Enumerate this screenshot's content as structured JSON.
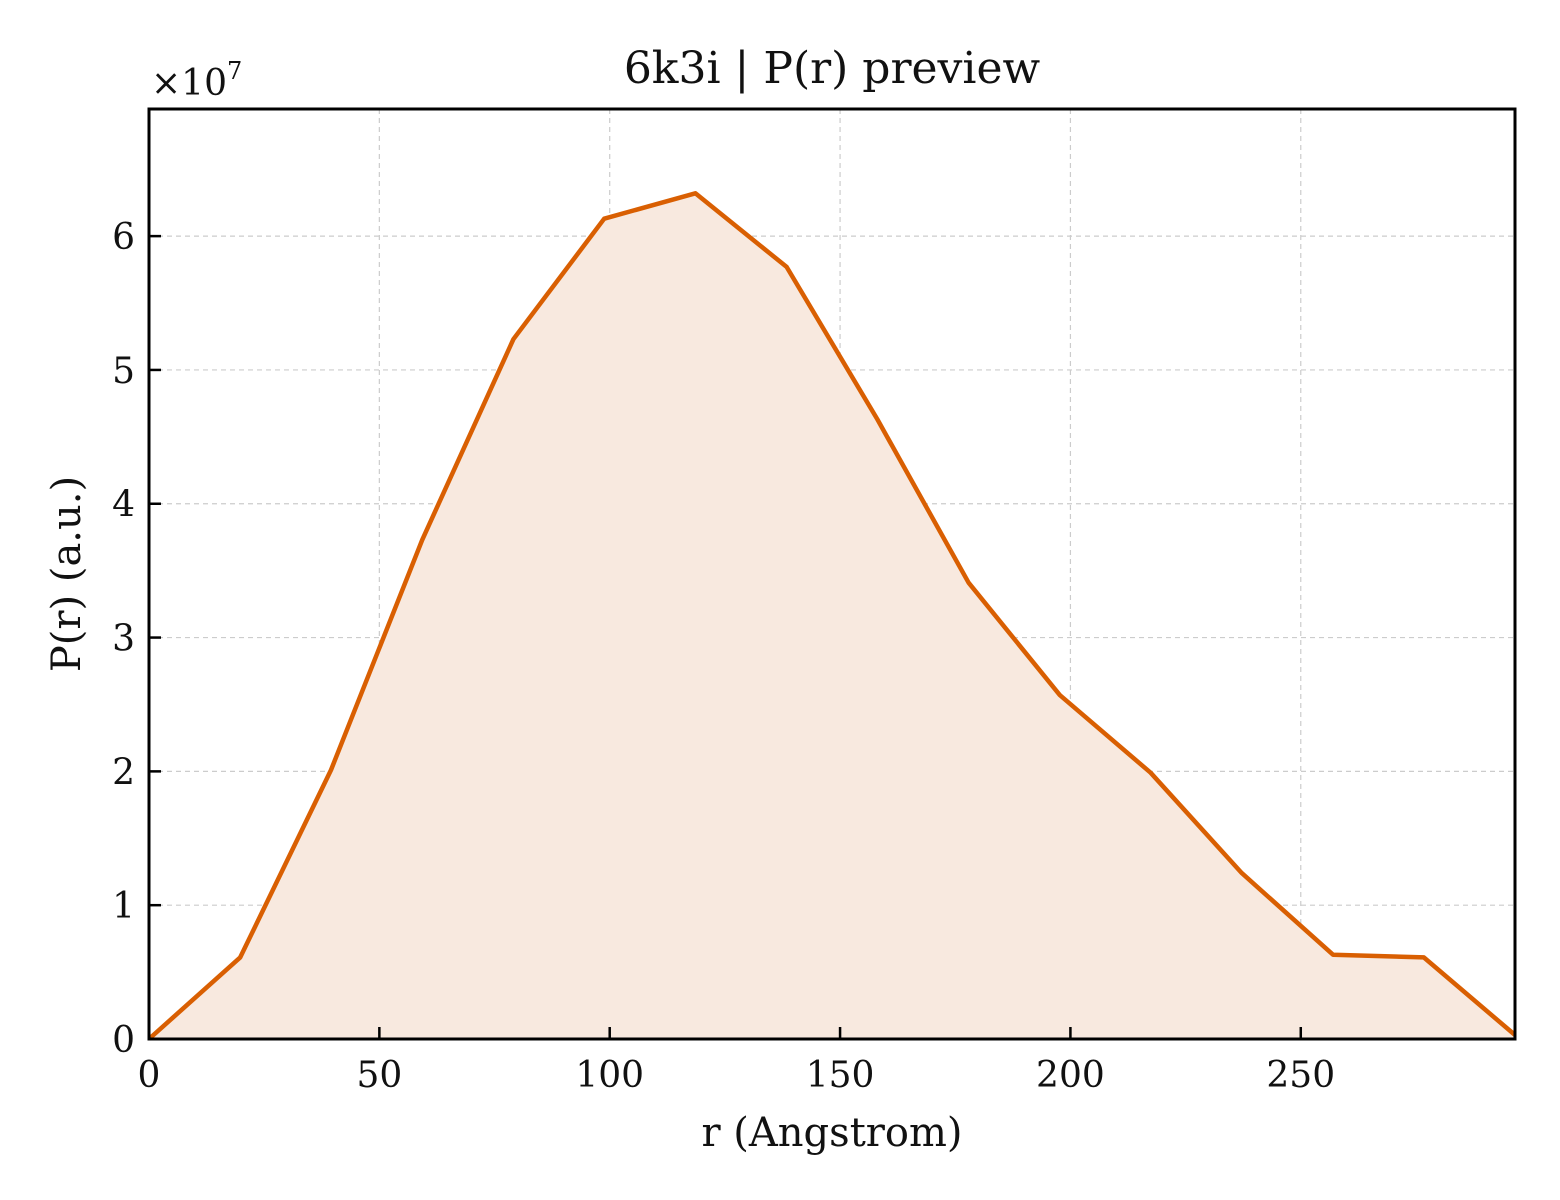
{
  "chart_data": {
    "type": "area",
    "title": "6k3i | P(r) preview",
    "xlabel": "r (Angstrom)",
    "ylabel": "P(r) (a.u.)",
    "y_multiplier": "×10",
    "y_multiplier_exp": "7",
    "xlim": [
      0,
      296.5
    ],
    "ylim": [
      0,
      6.95
    ],
    "x_ticks": [
      0,
      50,
      100,
      150,
      200,
      250
    ],
    "y_ticks": [
      0,
      1,
      2,
      3,
      4,
      5,
      6
    ],
    "grid": true,
    "line_color": "#d95f02",
    "fill_color": "#f8e9df",
    "x": [
      0,
      19.8,
      39.5,
      59.3,
      79.1,
      98.8,
      118.6,
      138.4,
      158.1,
      177.9,
      197.7,
      217.4,
      237.2,
      257.0,
      276.7,
      296.5
    ],
    "values": [
      0.0,
      0.61,
      2.01,
      3.73,
      5.23,
      6.13,
      6.32,
      5.77,
      4.63,
      3.41,
      2.57,
      1.99,
      1.24,
      0.63,
      0.61,
      0.03
    ]
  }
}
